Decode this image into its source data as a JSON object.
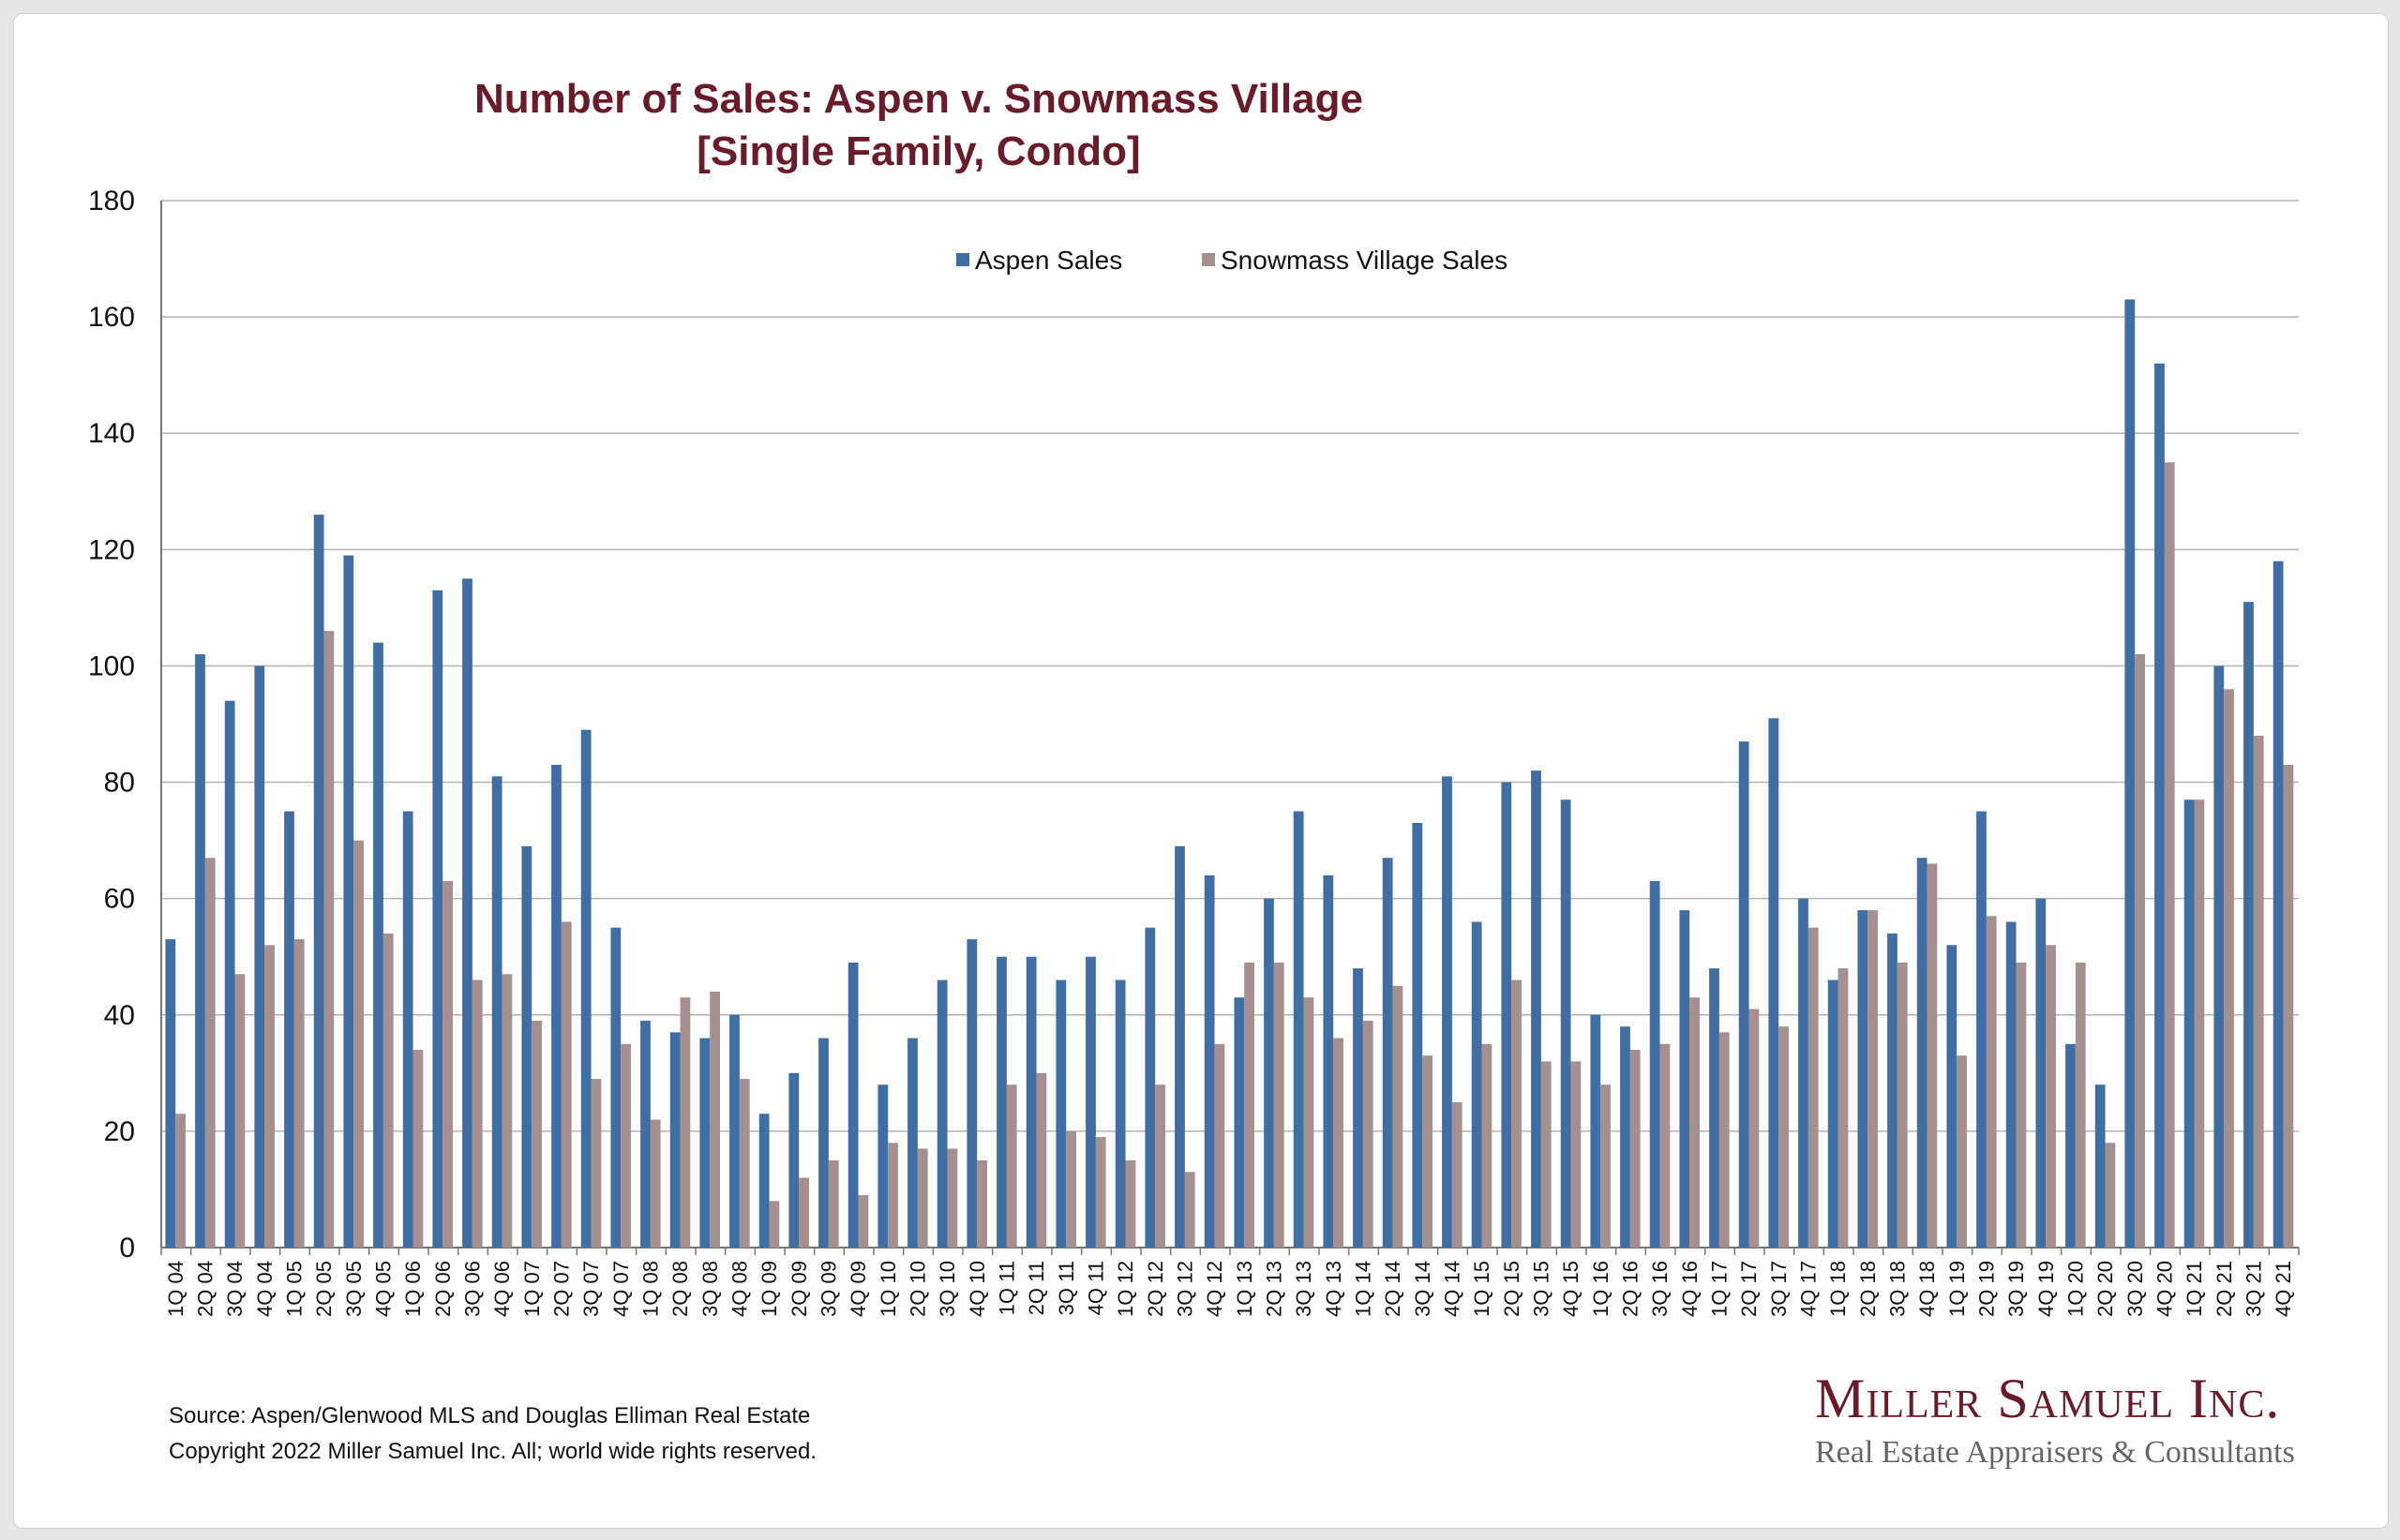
{
  "chart_data": {
    "type": "bar",
    "title_line1": "Number of Sales: Aspen v. Snowmass Village",
    "title_line2": "[Single Family, Condo]",
    "xlabel": "",
    "ylabel": "",
    "ylim": [
      0,
      180
    ],
    "yticks": [
      0,
      20,
      40,
      60,
      80,
      100,
      120,
      140,
      160,
      180
    ],
    "grid": true,
    "legend_position": "top-center",
    "colors": {
      "aspen": "#3f6ea5",
      "snowmass": "#a58f8f"
    },
    "categories": [
      "1Q 04",
      "2Q 04",
      "3Q 04",
      "4Q 04",
      "1Q 05",
      "2Q 05",
      "3Q 05",
      "4Q 05",
      "1Q 06",
      "2Q 06",
      "3Q 06",
      "4Q 06",
      "1Q 07",
      "2Q 07",
      "3Q 07",
      "4Q 07",
      "1Q 08",
      "2Q 08",
      "3Q 08",
      "4Q 08",
      "1Q 09",
      "2Q 09",
      "3Q 09",
      "4Q 09",
      "1Q 10",
      "2Q 10",
      "3Q 10",
      "4Q 10",
      "1Q 11",
      "2Q 11",
      "3Q 11",
      "4Q 11",
      "1Q 12",
      "2Q 12",
      "3Q 12",
      "4Q 12",
      "1Q 13",
      "2Q 13",
      "3Q 13",
      "4Q 13",
      "1Q 14",
      "2Q 14",
      "3Q 14",
      "4Q 14",
      "1Q 15",
      "2Q 15",
      "3Q 15",
      "4Q 15",
      "1Q 16",
      "2Q 16",
      "3Q 16",
      "4Q 16",
      "1Q 17",
      "2Q 17",
      "3Q 17",
      "4Q 17",
      "1Q 18",
      "2Q 18",
      "3Q 18",
      "4Q 18",
      "1Q 19",
      "2Q 19",
      "3Q 19",
      "4Q 19",
      "1Q 20",
      "2Q 20",
      "3Q 20",
      "4Q 20",
      "1Q 21",
      "2Q 21",
      "3Q 21",
      "4Q 21"
    ],
    "series": [
      {
        "name": "Aspen Sales",
        "values": [
          53,
          102,
          94,
          100,
          75,
          126,
          119,
          104,
          75,
          113,
          115,
          81,
          69,
          83,
          89,
          55,
          39,
          37,
          36,
          40,
          23,
          30,
          36,
          49,
          28,
          36,
          46,
          53,
          50,
          50,
          46,
          50,
          46,
          55,
          69,
          64,
          43,
          60,
          75,
          64,
          48,
          67,
          73,
          81,
          56,
          80,
          82,
          77,
          40,
          38,
          63,
          58,
          48,
          87,
          91,
          60,
          46,
          58,
          54,
          67,
          52,
          75,
          56,
          60,
          35,
          28,
          163,
          152,
          77,
          100,
          111,
          118
        ]
      },
      {
        "name": "Snowmass Village Sales",
        "values": [
          23,
          67,
          47,
          52,
          53,
          106,
          70,
          54,
          34,
          63,
          46,
          47,
          39,
          56,
          29,
          35,
          22,
          43,
          44,
          29,
          8,
          12,
          15,
          9,
          18,
          17,
          17,
          15,
          28,
          30,
          20,
          19,
          15,
          28,
          13,
          35,
          49,
          49,
          43,
          36,
          39,
          45,
          33,
          25,
          35,
          46,
          32,
          32,
          28,
          34,
          35,
          43,
          37,
          41,
          38,
          55,
          48,
          58,
          49,
          66,
          33,
          57,
          49,
          52,
          49,
          18,
          102,
          135,
          77,
          96,
          88,
          83
        ]
      }
    ]
  },
  "footer": {
    "source": "Source: Aspen/Glenwood MLS and Douglas Elliman Real Estate",
    "copyright": "Copyright 2022 Miller Samuel Inc.  All; world wide rights reserved."
  },
  "logo": {
    "name": "Miller Samuel Inc.",
    "tagline": "Real Estate Appraisers & Consultants"
  }
}
